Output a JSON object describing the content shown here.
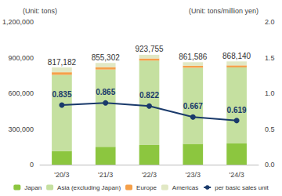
{
  "chart_data": {
    "type": "bar",
    "categories": [
      "'20/3",
      "'21/3",
      "'22/3",
      "'23/3",
      "'24/3"
    ],
    "series": [
      {
        "name": "Japan",
        "type": "bar",
        "color": "#8cc63f",
        "values": [
          115000,
          150000,
          165000,
          175000,
          178000
        ]
      },
      {
        "name": "Asia (excluding Japan)",
        "type": "bar",
        "color": "#c5e0a0",
        "values": [
          640000,
          650000,
          710000,
          640000,
          640000
        ]
      },
      {
        "name": "Europe",
        "type": "bar",
        "color": "#f5a04a",
        "values": [
          22000,
          20000,
          18000,
          17000,
          17000
        ]
      },
      {
        "name": "Americas",
        "type": "bar",
        "color": "#e1e8c4",
        "values": [
          40182,
          35302,
          30755,
          29586,
          33140
        ]
      },
      {
        "name": "per basic sales unit",
        "type": "line",
        "axis": "y2",
        "color": "#1a3a6b",
        "marker": "circle",
        "data_labels": true,
        "values": [
          0.835,
          0.865,
          0.822,
          0.667,
          0.619
        ]
      }
    ],
    "totals": [
      817182,
      855302,
      923755,
      861586,
      868140
    ],
    "total_labels": [
      "817,182",
      "855,302",
      "923,755",
      "861,586",
      "868,140"
    ],
    "stacked": true,
    "y_label": "(Unit: tons)",
    "y2_label": "(Unit: tons/million yen)",
    "ylim": [
      0,
      1200000
    ],
    "yticks": [
      0,
      {
        "value": 300000,
        "label": "300,000"
      },
      {
        "value": 600000,
        "label": "600,000"
      },
      {
        "value": 900000,
        "label": "900,000"
      },
      {
        "value": 1200000,
        "label": "1,200,000"
      }
    ],
    "y2lim": [
      0,
      2
    ],
    "y2ticks": [
      {
        "value": 0,
        "label": "0.0"
      },
      0.5,
      {
        "value": 1,
        "label": "1.0"
      },
      1.5,
      {
        "value": 2,
        "label": "2.0"
      }
    ],
    "grid": false,
    "legend": "bottom"
  }
}
